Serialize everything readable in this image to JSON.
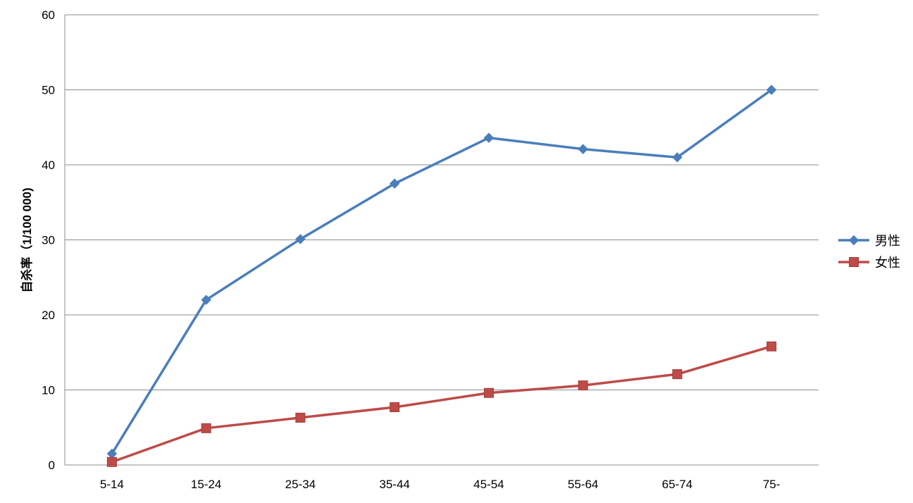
{
  "chart_data": {
    "type": "line",
    "title": "",
    "xlabel": "",
    "ylabel": "自杀率（1/100 000)",
    "categories": [
      "5-14",
      "15-24",
      "25-34",
      "35-44",
      "45-54",
      "55-64",
      "65-74",
      "75-"
    ],
    "ylim": [
      0,
      60
    ],
    "yticks": [
      "0",
      "10",
      "20",
      "30",
      "40",
      "50",
      "60"
    ],
    "grid": true,
    "legend_position": "right",
    "series": [
      {
        "name": "男性",
        "color": "#4a7ebb",
        "marker": "diamond",
        "values": [
          1.5,
          22.0,
          30.1,
          37.5,
          43.6,
          42.1,
          41.0,
          50.0
        ]
      },
      {
        "name": "女性",
        "color": "#be4b48",
        "marker": "square",
        "values": [
          0.4,
          4.9,
          6.3,
          7.7,
          9.6,
          10.6,
          12.1,
          15.8
        ]
      }
    ]
  }
}
